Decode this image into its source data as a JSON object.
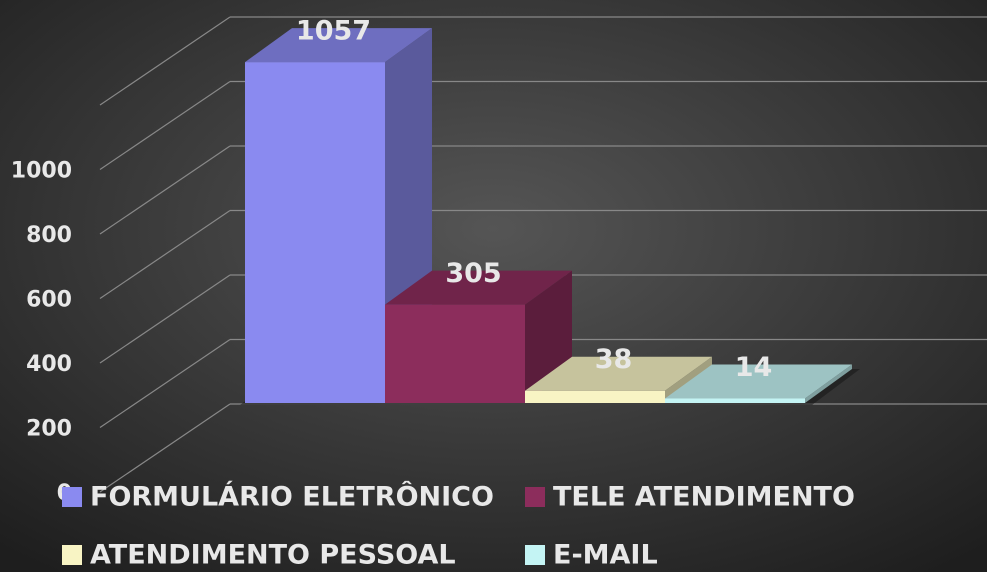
{
  "chart_data": {
    "type": "bar3d",
    "categories": [
      "FORMULÁRIO ELETRÔNICO",
      "TELE ATENDIMENTO",
      "ATENDIMENTO PESSOAL",
      "E-MAIL"
    ],
    "values": [
      1057,
      305,
      38,
      14
    ],
    "colors": [
      "#8a8af0",
      "#8c2d5c",
      "#f8f4c4",
      "#c4f4f4"
    ],
    "ylim": [
      0,
      1200
    ],
    "yticks": [
      0,
      200,
      400,
      600,
      800,
      1000
    ],
    "grid": true,
    "legend": "bottom"
  }
}
